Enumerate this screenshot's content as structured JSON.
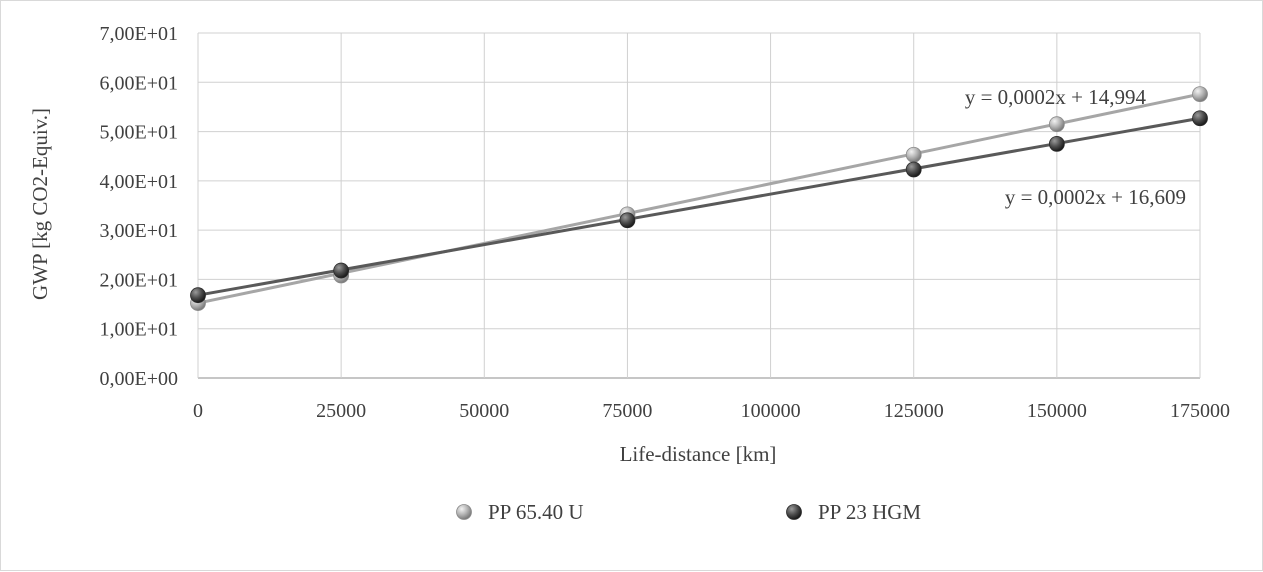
{
  "chart_data": {
    "type": "scatter",
    "title": "",
    "xlabel": "Life-distance [km]",
    "ylabel": "GWP [kg CO2-Equiv.]",
    "xlim": [
      0,
      175000
    ],
    "ylim": [
      0,
      70
    ],
    "x_ticks": [
      0,
      25000,
      50000,
      75000,
      100000,
      125000,
      150000,
      175000
    ],
    "x_tick_labels": [
      "0",
      "25000",
      "50000",
      "75000",
      "100000",
      "125000",
      "150000",
      "175000"
    ],
    "y_ticks": [
      0,
      10,
      20,
      30,
      40,
      50,
      60,
      70
    ],
    "y_tick_labels": [
      "0,00E+00",
      "1,00E+01",
      "2,00E+01",
      "3,00E+01",
      "4,00E+01",
      "5,00E+01",
      "6,00E+01",
      "7,00E+01"
    ],
    "grid": true,
    "legend_position": "bottom",
    "series": [
      {
        "name": "PP 65.40 U",
        "color": "#a6a6a6",
        "x": [
          0,
          25000,
          75000,
          125000,
          150000,
          175000
        ],
        "y": [
          15.2,
          20.8,
          33.2,
          45.3,
          51.5,
          57.6
        ],
        "trendline": {
          "slope": 0.0002,
          "intercept": 14.994,
          "label": "y = 0,0002x + 14,994"
        }
      },
      {
        "name": "PP 23 HGM",
        "color": "#595959",
        "x": [
          0,
          25000,
          75000,
          125000,
          150000,
          175000
        ],
        "y": [
          16.8,
          21.8,
          32.0,
          42.3,
          47.5,
          52.7
        ],
        "trendline": {
          "slope": 0.0002,
          "intercept": 16.609,
          "label": "y = 0,0002x + 16,609"
        }
      }
    ]
  }
}
